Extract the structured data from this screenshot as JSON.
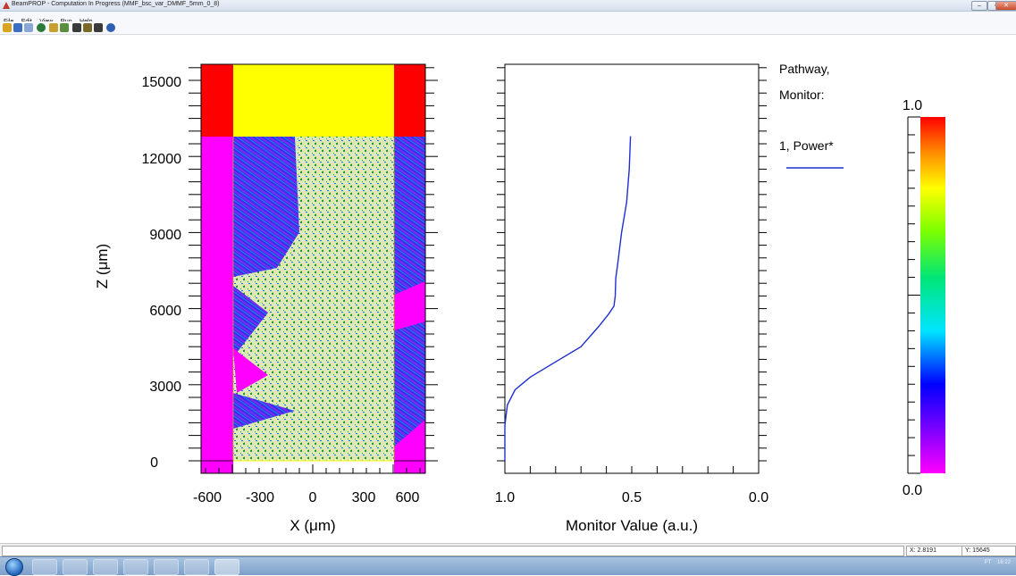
{
  "window": {
    "title": "BeamPROP - Computation In Progress (MMF_bsc_var_DMMF_5mm_0_8)",
    "controls": [
      "–",
      "▫",
      "✕"
    ]
  },
  "menu": [
    "File",
    "Edit",
    "View",
    "Run",
    "Help"
  ],
  "toolbar_icons": [
    "open-icon",
    "save-icon",
    "copy-icon",
    "refresh-icon",
    "chart-icon",
    "chart2-icon",
    "layout-icon",
    "layout2-icon",
    "layout3-icon",
    "help-icon"
  ],
  "field_plot": {
    "xlabel": "X (μm)",
    "ylabel": "Z (μm)",
    "x_ticks": [
      "-600",
      "-300",
      "0",
      "300",
      "600"
    ],
    "y_ticks": [
      "0",
      "3000",
      "6000",
      "9000",
      "12000",
      "15000"
    ]
  },
  "monitor_plot": {
    "xlabel": "Monitor Value (a.u.)",
    "x_ticks": [
      "1.0",
      "0.5",
      "0.0"
    ],
    "legend_title": [
      "Pathway,",
      "Monitor:"
    ],
    "legend_entry": "1, Power*",
    "line_color": "#1f2fd0"
  },
  "colorbar": {
    "max_label": "1.0",
    "min_label": "0.0"
  },
  "status": {
    "x_readout": "X: 2.8191",
    "y_readout": "Y: 15645"
  },
  "tray": {
    "lang": "PT",
    "time": "16:22"
  },
  "chart_data": {
    "type": "line",
    "title": "",
    "xlabel": "Monitor Value (a.u.)",
    "ylabel": "Z (μm)",
    "xlim": [
      1.0,
      0.0
    ],
    "ylim": [
      0,
      15600
    ],
    "series": [
      {
        "name": "1, Power*",
        "x": [
          1.0,
          1.0,
          0.99,
          0.96,
          0.9,
          0.8,
          0.7,
          0.63,
          0.59,
          0.57,
          0.565,
          0.563,
          0.555,
          0.54,
          0.52,
          0.51,
          0.505
        ],
        "y": [
          0,
          1400,
          2200,
          2800,
          3300,
          3900,
          4500,
          5300,
          5800,
          6100,
          6500,
          7200,
          7800,
          9000,
          10200,
          11500,
          12800
        ]
      }
    ]
  }
}
